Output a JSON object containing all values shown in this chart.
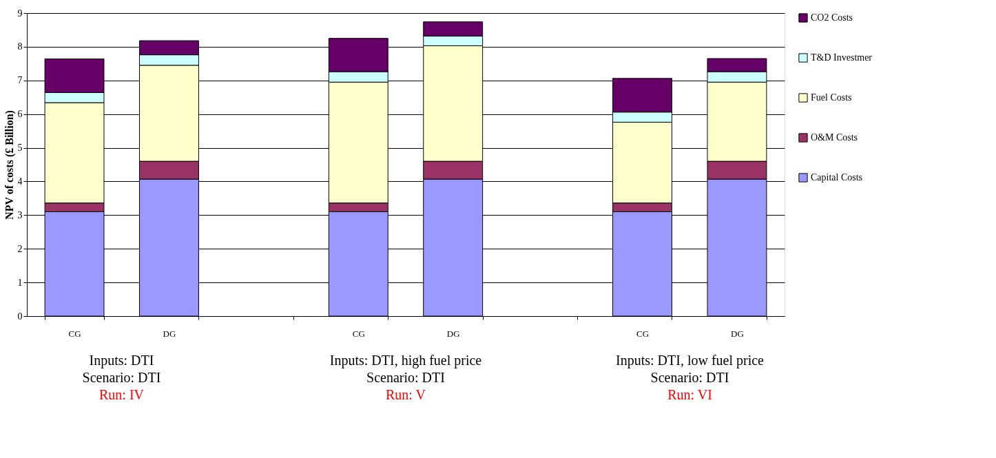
{
  "chart_data": {
    "type": "bar",
    "stacked": true,
    "ylabel": "NPV of costs (£ Billion)",
    "categories": [
      "CG",
      "DG",
      null,
      "CG",
      "DG",
      null,
      "CG",
      "DG"
    ],
    "series": [
      {
        "name": "Capital Costs",
        "color": "#9999ff",
        "values": [
          3.1,
          4.07,
          null,
          3.1,
          4.07,
          null,
          3.1,
          4.07
        ]
      },
      {
        "name": "O&M Costs",
        "color": "#993366",
        "values": [
          0.26,
          0.53,
          null,
          0.26,
          0.53,
          null,
          0.26,
          0.53
        ]
      },
      {
        "name": "Fuel Costs",
        "color": "#ffffcc",
        "values": [
          2.98,
          2.85,
          null,
          3.59,
          3.43,
          null,
          2.4,
          2.35
        ]
      },
      {
        "name": "T&D Investmer",
        "color": "#ccffff",
        "values": [
          0.3,
          0.31,
          null,
          0.31,
          0.29,
          null,
          0.3,
          0.31
        ]
      },
      {
        "name": "CO2 Costs",
        "color": "#660066",
        "values": [
          1.0,
          0.42,
          null,
          0.99,
          0.42,
          null,
          1.0,
          0.39
        ]
      }
    ],
    "ylim": [
      0,
      9
    ],
    "yticks": [
      0,
      1,
      2,
      3,
      4,
      5,
      6,
      7,
      8,
      9
    ],
    "grid": "y",
    "legend": "right",
    "annotations": [
      "Inputs:  DTI\nScenario: DTI\nRun: IV",
      "Inputs:  DTI, high fuel price\nScenario: DTI\nRun: V",
      "Inputs:  DTI, low fuel price\nScenario: DTI\nRun: VI"
    ]
  }
}
